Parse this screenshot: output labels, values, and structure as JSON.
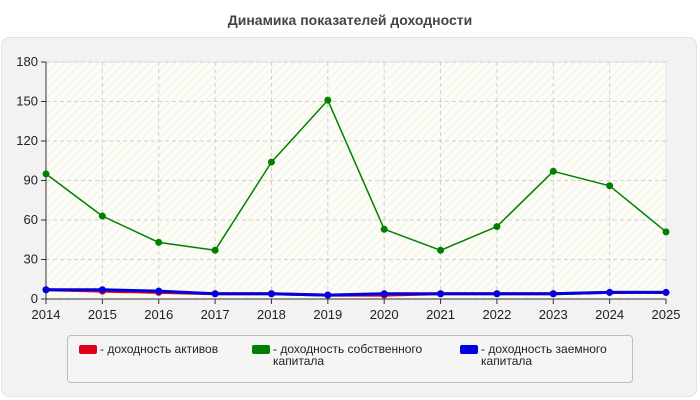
{
  "chart_data": {
    "type": "line",
    "title": "Динамика показателей доходности",
    "xlabel": "",
    "ylabel": "",
    "categories": [
      "2014",
      "2015",
      "2016",
      "2017",
      "2018",
      "2019",
      "2020",
      "2021",
      "2022",
      "2023",
      "2024",
      "2025"
    ],
    "ylim": [
      0,
      180
    ],
    "yticks": [
      "0",
      "30",
      "60",
      "90",
      "120",
      "150",
      "180"
    ],
    "grid": true,
    "legend_position": "bottom",
    "series": [
      {
        "name": "доходность активов",
        "color": "#e0001a",
        "values": [
          7,
          6,
          5,
          4,
          4,
          3,
          3,
          4,
          4,
          4,
          5,
          5
        ]
      },
      {
        "name": "доходность собственного капитала",
        "color": "#008000",
        "values": [
          95,
          63,
          43,
          37,
          104,
          151,
          53,
          37,
          55,
          97,
          86,
          51
        ]
      },
      {
        "name": "доходность заемного капитала",
        "color": "#0000e0",
        "values": [
          7,
          7,
          6,
          4,
          4,
          3,
          4,
          4,
          4,
          4,
          5,
          5
        ]
      }
    ]
  },
  "legend": {
    "items": [
      {
        "label": "- доходность активов",
        "color": "#e0001a"
      },
      {
        "label": "- доходность собственного капитала",
        "color": "#008000"
      },
      {
        "label": "- доходность заемного капитала",
        "color": "#0000e0"
      }
    ]
  }
}
